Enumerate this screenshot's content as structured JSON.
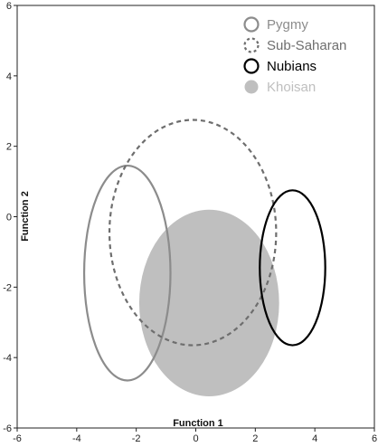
{
  "chart_data": {
    "type": "scatter",
    "title": "",
    "xlabel": "Function 1",
    "ylabel": "Function 2",
    "xlim": [
      -6,
      6
    ],
    "ylim": [
      -6,
      6
    ],
    "xticks": [
      -6,
      -4,
      -2,
      0,
      2,
      4,
      6
    ],
    "yticks": [
      -6,
      -4,
      -2,
      0,
      2,
      4,
      6
    ],
    "grid": false,
    "legend_position": "top-right",
    "series": [
      {
        "name": "Pygmy",
        "marker": "ellipse-outline",
        "center": [
          -2.3,
          -1.6
        ],
        "radii": [
          1.45,
          3.05
        ],
        "color": "#8c8c8c",
        "dashed": false,
        "filled": false
      },
      {
        "name": "Sub-Saharan",
        "marker": "ellipse-dashed",
        "center": [
          -0.1,
          -0.45
        ],
        "radii": [
          2.8,
          3.2
        ],
        "color": "#6e6e6e",
        "dashed": true,
        "filled": false
      },
      {
        "name": "Nubians",
        "marker": "ellipse-outline",
        "center": [
          3.25,
          -1.45
        ],
        "radii": [
          1.1,
          2.2
        ],
        "color": "#000000",
        "dashed": false,
        "filled": false
      },
      {
        "name": "Khoisan",
        "marker": "ellipse-filled",
        "center": [
          0.45,
          -2.45
        ],
        "radii": [
          2.35,
          2.65
        ],
        "color": "#bfbfbf",
        "dashed": false,
        "filled": true
      }
    ]
  }
}
